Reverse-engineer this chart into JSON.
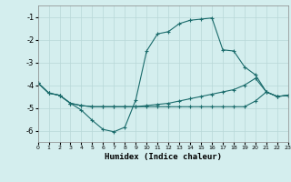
{
  "xlabel": "Humidex (Indice chaleur)",
  "xlim": [
    0,
    23
  ],
  "ylim": [
    -6.5,
    -0.5
  ],
  "yticks": [
    -1,
    -2,
    -3,
    -4,
    -5,
    -6
  ],
  "xticks": [
    0,
    1,
    2,
    3,
    4,
    5,
    6,
    7,
    8,
    9,
    10,
    11,
    12,
    13,
    14,
    15,
    16,
    17,
    18,
    19,
    20,
    21,
    22,
    23
  ],
  "bg_color": "#d4eeee",
  "line_color": "#1a6b6b",
  "grid_color": "#b8d8d8",
  "s1_x": [
    0,
    1,
    2,
    3,
    4,
    5,
    6,
    7,
    8,
    9,
    10,
    11,
    12,
    13,
    14,
    15,
    16,
    17,
    18,
    19,
    20,
    21,
    22,
    23
  ],
  "s1_y": [
    -3.9,
    -4.35,
    -4.45,
    -4.8,
    -5.1,
    -5.55,
    -5.95,
    -6.05,
    -5.85,
    -4.65,
    -2.5,
    -1.75,
    -1.65,
    -1.3,
    -1.15,
    -1.1,
    -1.05,
    -2.45,
    -2.5,
    -3.2,
    -3.55,
    -4.3,
    -4.5,
    -4.45
  ],
  "s2_x": [
    0,
    1,
    2,
    3,
    4,
    5,
    6,
    7,
    8,
    9,
    10,
    11,
    12,
    13,
    14,
    15,
    16,
    17,
    18,
    19,
    20,
    21,
    22,
    23
  ],
  "s2_y": [
    -3.9,
    -4.35,
    -4.45,
    -4.8,
    -4.9,
    -4.95,
    -4.95,
    -4.95,
    -4.95,
    -4.95,
    -4.9,
    -4.85,
    -4.8,
    -4.7,
    -4.6,
    -4.5,
    -4.4,
    -4.3,
    -4.2,
    -4.0,
    -3.7,
    -4.3,
    -4.5,
    -4.45
  ],
  "s3_x": [
    0,
    1,
    2,
    3,
    4,
    5,
    6,
    7,
    8,
    9,
    10,
    11,
    12,
    13,
    14,
    15,
    16,
    17,
    18,
    19,
    20,
    21,
    22,
    23
  ],
  "s3_y": [
    -3.9,
    -4.35,
    -4.45,
    -4.8,
    -4.9,
    -4.95,
    -4.95,
    -4.95,
    -4.95,
    -4.95,
    -4.95,
    -4.95,
    -4.95,
    -4.95,
    -4.95,
    -4.95,
    -4.95,
    -4.95,
    -4.95,
    -4.95,
    -4.7,
    -4.3,
    -4.5,
    -4.45
  ]
}
